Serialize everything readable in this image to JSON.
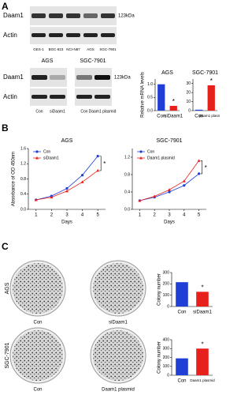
{
  "panels": [
    "A",
    "B",
    "C"
  ],
  "blots": {
    "top": {
      "rows": [
        "Daam1",
        "Actin"
      ],
      "size": "123kDa",
      "lanes": [
        "GES-1",
        "BGC-823",
        "NCI-N87",
        "AGS",
        "SGC-7901"
      ]
    },
    "mid": {
      "groups": [
        "AGS",
        "SGC-7901"
      ],
      "rows": [
        "Daam1",
        "Actin"
      ],
      "size": "123kDa",
      "lanes": [
        "Con",
        "siDaam1",
        "Con",
        "Daam1 plasmid"
      ]
    }
  },
  "dishes": {
    "rows": [
      "AGS",
      "SGC-7901"
    ],
    "labels": [
      [
        "Con",
        "siDaam1"
      ],
      [
        "Con",
        "Daam1 plasmid"
      ]
    ]
  },
  "chart_data": [
    {
      "type": "bar",
      "title": "AGS",
      "ylabel": "Relative mRNA levels",
      "categories": [
        "Con",
        "siDaam1"
      ],
      "values": [
        1.0,
        0.18
      ],
      "colors": [
        "#1f3fd6",
        "#e8201c"
      ],
      "ylim": [
        0,
        1.2
      ],
      "yticks": [
        {
          "value": 0,
          "label": "0.0"
        },
        {
          "value": 0.5,
          "label": "0.5"
        },
        {
          "value": 1,
          "label": "1.0"
        }
      ],
      "annotation": "*"
    },
    {
      "type": "bar",
      "title": "SGC-7901",
      "categories": [
        "Con",
        "Daam1 plasmid"
      ],
      "values": [
        1,
        28
      ],
      "colors": [
        "#1f3fd6",
        "#e8201c"
      ],
      "ylim": [
        0,
        35
      ],
      "yticks": [
        0,
        10,
        20,
        30
      ],
      "annotation": "*"
    },
    {
      "type": "line",
      "title": "AGS",
      "ylabel": "Absorbance of OD 450nm",
      "xlabel": "Days",
      "x": [
        1,
        2,
        3,
        4,
        5
      ],
      "xlim": [
        0.5,
        5.5
      ],
      "xticks": [
        1,
        2,
        3,
        4,
        5
      ],
      "ylim": [
        0,
        1.6
      ],
      "yticks": [
        {
          "value": 0,
          "label": "0.0"
        },
        {
          "value": 0.4,
          "label": "0.4"
        },
        {
          "value": 0.8,
          "label": "0.8"
        },
        {
          "value": 1.2,
          "label": "1.2"
        },
        {
          "value": 1.6,
          "label": "1.6"
        }
      ],
      "series": [
        {
          "name": "Con",
          "color": "#1f3fd6",
          "marker": "circle",
          "values": [
            0.25,
            0.35,
            0.55,
            0.9,
            1.4
          ]
        },
        {
          "name": "siDaam1",
          "color": "#e8201c",
          "marker": "triangle",
          "values": [
            0.25,
            0.32,
            0.48,
            0.72,
            1.02
          ]
        }
      ],
      "annotation": "*"
    },
    {
      "type": "line",
      "title": "SGC-7901",
      "xlabel": "Days",
      "x": [
        1,
        2,
        3,
        4,
        5
      ],
      "xlim": [
        0.5,
        5.5
      ],
      "xticks": [
        1,
        2,
        3,
        4,
        5
      ],
      "ylim": [
        0,
        1.4
      ],
      "yticks": [
        {
          "value": 0,
          "label": "0.0"
        },
        {
          "value": 0.4,
          "label": "0.4"
        },
        {
          "value": 0.8,
          "label": "0.8"
        },
        {
          "value": 1.2,
          "label": "1.2"
        }
      ],
      "series": [
        {
          "name": "Con",
          "color": "#1f3fd6",
          "marker": "circle",
          "values": [
            0.2,
            0.28,
            0.4,
            0.55,
            0.82
          ]
        },
        {
          "name": "Daam1 plasmid",
          "color": "#e8201c",
          "marker": "triangle",
          "values": [
            0.2,
            0.3,
            0.45,
            0.65,
            1.12
          ]
        }
      ],
      "annotation": "*"
    },
    {
      "type": "bar",
      "ylabel": "Colony number",
      "categories": [
        "Con",
        "siDaam1"
      ],
      "values": [
        215,
        130
      ],
      "colors": [
        "#1f3fd6",
        "#e8201c"
      ],
      "ylim": [
        0,
        300
      ],
      "yticks": [
        0,
        100,
        200,
        300
      ],
      "annotation": "*"
    },
    {
      "type": "bar",
      "ylabel": "Colony number",
      "categories": [
        "Con",
        "Daam1 plasmid"
      ],
      "values": [
        190,
        300
      ],
      "colors": [
        "#1f3fd6",
        "#e8201c"
      ],
      "ylim": [
        0,
        400
      ],
      "yticks": [
        0,
        100,
        200,
        300,
        400
      ],
      "annotation": "*"
    }
  ]
}
